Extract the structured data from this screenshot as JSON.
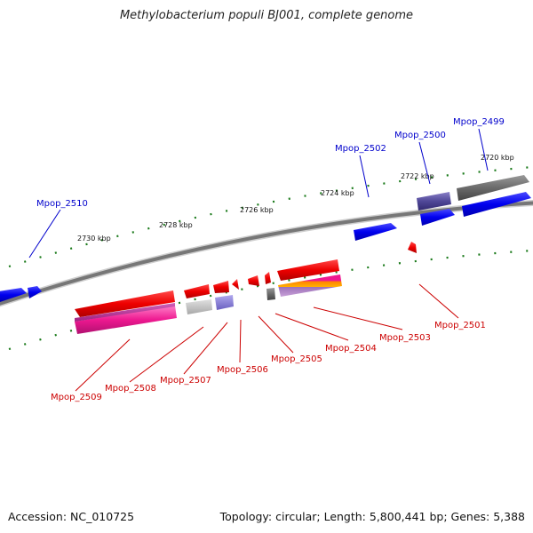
{
  "title": "Methylobacterium populi BJ001, complete genome",
  "accession": "Accession: NC_010725",
  "summary": "Topology: circular; Length: 5,800,441 bp; Genes: 5,388",
  "scale_labels": [
    "2720 kbp",
    "2722 kbp",
    "2724 kbp",
    "2726 kbp",
    "2728 kbp",
    "2730 kbp"
  ],
  "forward_genes": [
    "Mpop_2499",
    "Mpop_2500",
    "Mpop_2502",
    "Mpop_2510"
  ],
  "reverse_genes": [
    "Mpop_2501",
    "Mpop_2503",
    "Mpop_2504",
    "Mpop_2505",
    "Mpop_2506",
    "Mpop_2507",
    "Mpop_2508",
    "Mpop_2509"
  ],
  "colors": {
    "forward_label": "#0000cc",
    "reverse_label": "#cc0000",
    "forward_gene": "#0000ee",
    "reverse_gene": "#ee0000",
    "backbone": "#7a7a7a",
    "tick": "#1a7a1a"
  }
}
